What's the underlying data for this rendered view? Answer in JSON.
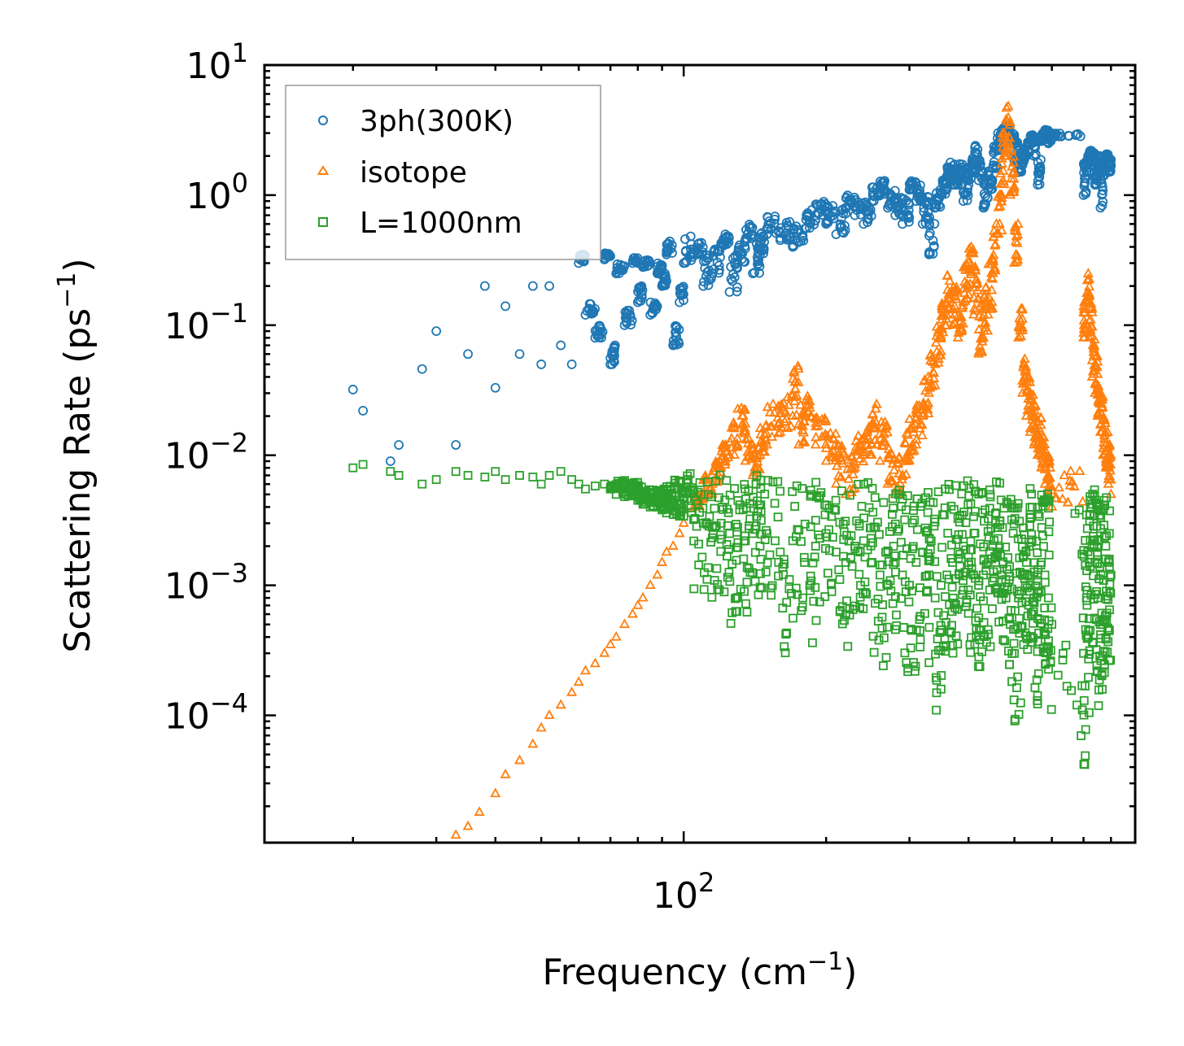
{
  "chart_data": {
    "type": "scatter",
    "title": "",
    "xlabel": "Frequency (cm",
    "xlabel_sup": "−1",
    "xlabel_end": ")",
    "ylabel": "Scattering Rate (ps",
    "ylabel_sup": "−1",
    "ylabel_end": ")",
    "xscale": "log",
    "yscale": "log",
    "xlim": [
      13,
      900
    ],
    "ylim": [
      1.05e-05,
      10
    ],
    "x_ticks": [
      {
        "value": 100,
        "base": "10",
        "exp": "2"
      }
    ],
    "y_ticks": [
      {
        "value": 10,
        "base": "10",
        "exp": "1"
      },
      {
        "value": 1,
        "base": "10",
        "exp": "0"
      },
      {
        "value": 0.1,
        "base": "10",
        "exp": "−1"
      },
      {
        "value": 0.01,
        "base": "10",
        "exp": "−2"
      },
      {
        "value": 0.001,
        "base": "10",
        "exp": "−3"
      },
      {
        "value": 0.0001,
        "base": "10",
        "exp": "−4"
      }
    ],
    "legend": {
      "position": "top-left"
    },
    "series": [
      {
        "name": "3ph(300K)",
        "color": "#1f77b4",
        "marker": "circle",
        "x": [
          20,
          21,
          24,
          25,
          28,
          30,
          33,
          35,
          38,
          40,
          42,
          45,
          48,
          50,
          52,
          55,
          58,
          60,
          62,
          65,
          68,
          70,
          72,
          75,
          78,
          80,
          82,
          85,
          88,
          90,
          92,
          95,
          98,
          100,
          105,
          110,
          115,
          120,
          125,
          130,
          135,
          140,
          145,
          150,
          160,
          170,
          180,
          190,
          200,
          210,
          220,
          230,
          240,
          250,
          260,
          270,
          280,
          290,
          300,
          310,
          320,
          330,
          340,
          350,
          360,
          370,
          380,
          390,
          400,
          410,
          420,
          430,
          440,
          450,
          460,
          470,
          480,
          490,
          500,
          510,
          520,
          530,
          540,
          550,
          560,
          570,
          580,
          590,
          600,
          700,
          710,
          720,
          730,
          740,
          750,
          760,
          770,
          780,
          790,
          800
        ],
        "y": [
          0.032,
          0.022,
          0.009,
          0.012,
          0.046,
          0.09,
          0.012,
          0.06,
          0.2,
          0.033,
          0.14,
          0.06,
          0.2,
          0.05,
          0.2,
          0.07,
          0.05,
          0.3,
          0.12,
          0.08,
          0.32,
          0.05,
          0.25,
          0.1,
          0.3,
          0.15,
          0.28,
          0.12,
          0.25,
          0.2,
          0.35,
          0.07,
          0.15,
          0.3,
          0.35,
          0.2,
          0.25,
          0.4,
          0.18,
          0.3,
          0.45,
          0.25,
          0.35,
          0.5,
          0.45,
          0.4,
          0.55,
          0.7,
          0.6,
          0.5,
          0.8,
          0.7,
          0.6,
          0.9,
          1.0,
          0.8,
          0.7,
          0.6,
          1.1,
          0.9,
          0.6,
          0.35,
          0.8,
          1.0,
          1.4,
          1.2,
          1.2,
          0.9,
          1.3,
          1.5,
          1.3,
          0.8,
          1.1,
          1.6,
          2.2,
          2.8,
          3.0,
          2.5,
          1.8,
          1.5,
          1.7,
          2.0,
          2.5,
          2.0,
          1.2,
          2.6,
          3.0,
          2.5,
          2.8,
          1.0,
          1.5,
          2.0,
          1.8,
          1.2,
          1.6,
          0.8,
          1.4,
          1.9,
          1.5,
          1.7
        ],
        "y_max": [
          0.032,
          0.022,
          0.009,
          0.012,
          0.046,
          0.09,
          0.012,
          0.06,
          0.2,
          0.033,
          0.14,
          0.06,
          0.2,
          0.05,
          0.2,
          0.07,
          0.05,
          0.35,
          0.15,
          0.1,
          0.36,
          0.07,
          0.3,
          0.13,
          0.33,
          0.2,
          0.32,
          0.15,
          0.3,
          0.25,
          0.45,
          0.1,
          0.2,
          0.5,
          0.45,
          0.35,
          0.4,
          0.5,
          0.35,
          0.45,
          0.6,
          0.45,
          0.55,
          0.7,
          0.65,
          0.6,
          0.8,
          0.9,
          0.85,
          0.8,
          1.0,
          0.9,
          0.9,
          1.2,
          1.3,
          1.1,
          1.0,
          0.95,
          1.3,
          1.2,
          1.0,
          0.7,
          1.1,
          1.3,
          1.8,
          1.8,
          1.8,
          1.5,
          2.0,
          2.5,
          2.0,
          1.4,
          1.6,
          2.4,
          3.0,
          3.3,
          3.5,
          3.0,
          2.6,
          2.2,
          2.4,
          2.6,
          3.0,
          2.8,
          2.2,
          3.0,
          3.2,
          3.0,
          3.1,
          1.9,
          2.0,
          2.2,
          2.1,
          1.8,
          2.0,
          1.6,
          1.9,
          2.1,
          1.9,
          1.8
        ]
      },
      {
        "name": "isotope",
        "color": "#ff7f0e",
        "marker": "triangle",
        "x": [
          33,
          35,
          37,
          40,
          42,
          45,
          48,
          50,
          52,
          55,
          58,
          60,
          62,
          65,
          68,
          70,
          72,
          75,
          78,
          80,
          82,
          85,
          88,
          90,
          92,
          95,
          98,
          100,
          105,
          110,
          115,
          120,
          125,
          130,
          135,
          140,
          145,
          150,
          160,
          170,
          175,
          180,
          190,
          200,
          210,
          220,
          230,
          240,
          250,
          260,
          270,
          280,
          290,
          300,
          310,
          320,
          330,
          340,
          350,
          360,
          370,
          380,
          390,
          400,
          410,
          420,
          430,
          440,
          450,
          460,
          470,
          480,
          490,
          500,
          510,
          520,
          530,
          540,
          550,
          560,
          570,
          580,
          590,
          600,
          700,
          710,
          720,
          730,
          740,
          750,
          760,
          770,
          780,
          790,
          800
        ],
        "y": [
          1.2e-05,
          1.4e-05,
          1.8e-05,
          2.5e-05,
          3.5e-05,
          4.5e-05,
          6e-05,
          8e-05,
          0.0001,
          0.00012,
          0.00015,
          0.00018,
          0.00022,
          0.00025,
          0.0003,
          0.00035,
          0.0004,
          0.0005,
          0.0006,
          0.0007,
          0.0008,
          0.001,
          0.0012,
          0.0015,
          0.0018,
          0.002,
          0.0025,
          0.003,
          0.004,
          0.005,
          0.006,
          0.008,
          0.01,
          0.012,
          0.009,
          0.007,
          0.01,
          0.012,
          0.015,
          0.02,
          0.012,
          0.018,
          0.012,
          0.009,
          0.006,
          0.005,
          0.008,
          0.01,
          0.012,
          0.009,
          0.006,
          0.005,
          0.007,
          0.01,
          0.012,
          0.02,
          0.03,
          0.05,
          0.08,
          0.12,
          0.1,
          0.08,
          0.15,
          0.2,
          0.12,
          0.06,
          0.08,
          0.12,
          0.25,
          0.5,
          1.0,
          2.0,
          1.0,
          0.3,
          0.08,
          0.03,
          0.02,
          0.015,
          0.012,
          0.01,
          0.008,
          0.006,
          0.005,
          0.004,
          0.08,
          0.15,
          0.08,
          0.04,
          0.03,
          0.02,
          0.015,
          0.01,
          0.008,
          0.006,
          0.005
        ],
        "y_max": [
          1.2e-05,
          1.4e-05,
          1.8e-05,
          2.5e-05,
          3.5e-05,
          4.5e-05,
          6e-05,
          8e-05,
          0.0001,
          0.00012,
          0.00015,
          0.00018,
          0.00022,
          0.00025,
          0.0003,
          0.00035,
          0.0004,
          0.0005,
          0.0006,
          0.0007,
          0.0008,
          0.001,
          0.0012,
          0.0015,
          0.0018,
          0.002,
          0.0025,
          0.003,
          0.005,
          0.007,
          0.009,
          0.012,
          0.018,
          0.025,
          0.015,
          0.012,
          0.018,
          0.025,
          0.03,
          0.05,
          0.025,
          0.03,
          0.02,
          0.015,
          0.012,
          0.01,
          0.015,
          0.02,
          0.025,
          0.018,
          0.012,
          0.01,
          0.015,
          0.02,
          0.025,
          0.04,
          0.06,
          0.1,
          0.15,
          0.25,
          0.2,
          0.15,
          0.3,
          0.4,
          0.3,
          0.15,
          0.2,
          0.3,
          0.6,
          1.5,
          3.0,
          5.0,
          2.5,
          0.6,
          0.15,
          0.06,
          0.04,
          0.03,
          0.025,
          0.02,
          0.015,
          0.012,
          0.01,
          0.008,
          0.15,
          0.25,
          0.15,
          0.08,
          0.06,
          0.04,
          0.03,
          0.02,
          0.015,
          0.012,
          0.01
        ]
      },
      {
        "name": "L=1000nm",
        "color": "#2ca02c",
        "marker": "square",
        "x": [
          20,
          21,
          24,
          25,
          28,
          30,
          33,
          35,
          38,
          40,
          42,
          45,
          48,
          50,
          52,
          55,
          58,
          60,
          62,
          65,
          68,
          70,
          72,
          75,
          78,
          80,
          82,
          85,
          88,
          90,
          92,
          95,
          98,
          100,
          105,
          110,
          115,
          120,
          125,
          130,
          135,
          140,
          145,
          150,
          160,
          170,
          180,
          190,
          200,
          210,
          220,
          230,
          240,
          250,
          260,
          270,
          280,
          290,
          300,
          310,
          320,
          330,
          340,
          350,
          360,
          370,
          380,
          390,
          400,
          410,
          420,
          430,
          440,
          450,
          460,
          470,
          480,
          490,
          500,
          510,
          520,
          530,
          540,
          550,
          560,
          570,
          580,
          590,
          600,
          700,
          710,
          720,
          730,
          740,
          750,
          760,
          770,
          780,
          790,
          800
        ],
        "y": [
          0.008,
          0.0085,
          0.0075,
          0.007,
          0.006,
          0.0065,
          0.0075,
          0.007,
          0.0068,
          0.0075,
          0.0065,
          0.007,
          0.0068,
          0.006,
          0.007,
          0.0075,
          0.0065,
          0.006,
          0.0055,
          0.0058,
          0.006,
          0.0055,
          0.005,
          0.0048,
          0.005,
          0.0045,
          0.0042,
          0.004,
          0.004,
          0.0038,
          0.0036,
          0.0035,
          0.0034,
          0.0034,
          0.0032,
          0.003,
          0.0028,
          0.003,
          0.0025,
          0.0028,
          0.0022,
          0.0025,
          0.002,
          0.0025,
          0.0018,
          0.0022,
          0.0015,
          0.002,
          0.0025,
          0.0018,
          0.0015,
          0.002,
          0.0022,
          0.0015,
          0.0012,
          0.0018,
          0.0015,
          0.0012,
          0.001,
          0.0015,
          0.0018,
          0.0012,
          0.0008,
          0.001,
          0.0012,
          0.0015,
          0.0018,
          0.002,
          0.0015,
          0.0012,
          0.001,
          0.0012,
          0.0015,
          0.002,
          0.0018,
          0.0012,
          0.0008,
          0.0005,
          0.0003,
          0.0008,
          0.0012,
          0.0015,
          0.001,
          0.0008,
          0.0012,
          0.0015,
          0.0012,
          0.0008,
          0.0005,
          0.0003,
          0.0008,
          0.0015,
          0.002,
          0.0015,
          0.0008,
          0.0005,
          0.0012,
          0.002,
          0.0015,
          0.0012
        ],
        "y_max": [
          0.008,
          0.0085,
          0.0075,
          0.007,
          0.006,
          0.0065,
          0.0075,
          0.007,
          0.0068,
          0.0075,
          0.0065,
          0.007,
          0.0068,
          0.006,
          0.007,
          0.0075,
          0.0065,
          0.006,
          0.0055,
          0.0058,
          0.006,
          0.006,
          0.0065,
          0.0065,
          0.0062,
          0.006,
          0.0058,
          0.0055,
          0.0055,
          0.0058,
          0.006,
          0.0065,
          0.007,
          0.0075,
          0.0072,
          0.007,
          0.0072,
          0.0075,
          0.007,
          0.0068,
          0.0065,
          0.007,
          0.0065,
          0.0068,
          0.006,
          0.0065,
          0.006,
          0.0062,
          0.0065,
          0.006,
          0.0058,
          0.006,
          0.0062,
          0.0058,
          0.0055,
          0.0058,
          0.0055,
          0.0055,
          0.0052,
          0.0058,
          0.006,
          0.0058,
          0.0055,
          0.0058,
          0.006,
          0.0062,
          0.0065,
          0.0068,
          0.0065,
          0.006,
          0.0058,
          0.006,
          0.0062,
          0.0065,
          0.0062,
          0.0058,
          0.0055,
          0.005,
          0.0045,
          0.005,
          0.0055,
          0.0058,
          0.0052,
          0.005,
          0.0055,
          0.0058,
          0.0055,
          0.005,
          0.0045,
          0.004,
          0.0045,
          0.005,
          0.0055,
          0.005,
          0.0045,
          0.004,
          0.0048,
          0.0055,
          0.005,
          0.0048
        ],
        "y_min": [
          0.008,
          0.0085,
          0.0075,
          0.007,
          0.006,
          0.0065,
          0.0075,
          0.007,
          0.0068,
          0.0075,
          0.0065,
          0.007,
          0.0068,
          0.006,
          0.007,
          0.0075,
          0.0065,
          0.006,
          0.0055,
          0.0058,
          0.006,
          0.0055,
          0.005,
          0.0048,
          0.005,
          0.0045,
          0.0042,
          0.004,
          0.004,
          0.0038,
          0.0036,
          0.0035,
          0.0034,
          0.0034,
          0.0008,
          0.0008,
          0.0008,
          0.0008,
          0.0005,
          0.0008,
          0.0005,
          0.0008,
          0.0005,
          0.0008,
          0.0003,
          0.0005,
          0.0003,
          0.0005,
          0.0008,
          0.0005,
          0.0003,
          0.0005,
          0.0008,
          0.0003,
          0.0002,
          0.0005,
          0.0003,
          0.0002,
          0.0002,
          0.0003,
          0.0005,
          0.0002,
          0.0001,
          0.0002,
          0.0003,
          0.0003,
          0.0005,
          0.0005,
          0.0003,
          0.0002,
          0.0002,
          0.0003,
          0.0003,
          0.0005,
          0.0005,
          0.0003,
          0.0002,
          0.0001,
          6e-05,
          0.0001,
          0.0002,
          0.0003,
          0.0002,
          0.0001,
          0.0002,
          0.0003,
          0.0002,
          0.0001,
          6e-05,
          4e-05,
          0.0001,
          0.0002,
          0.0003,
          0.0002,
          0.0001,
          6e-05,
          0.0002,
          0.0003,
          0.0002,
          0.0001
        ]
      }
    ]
  }
}
